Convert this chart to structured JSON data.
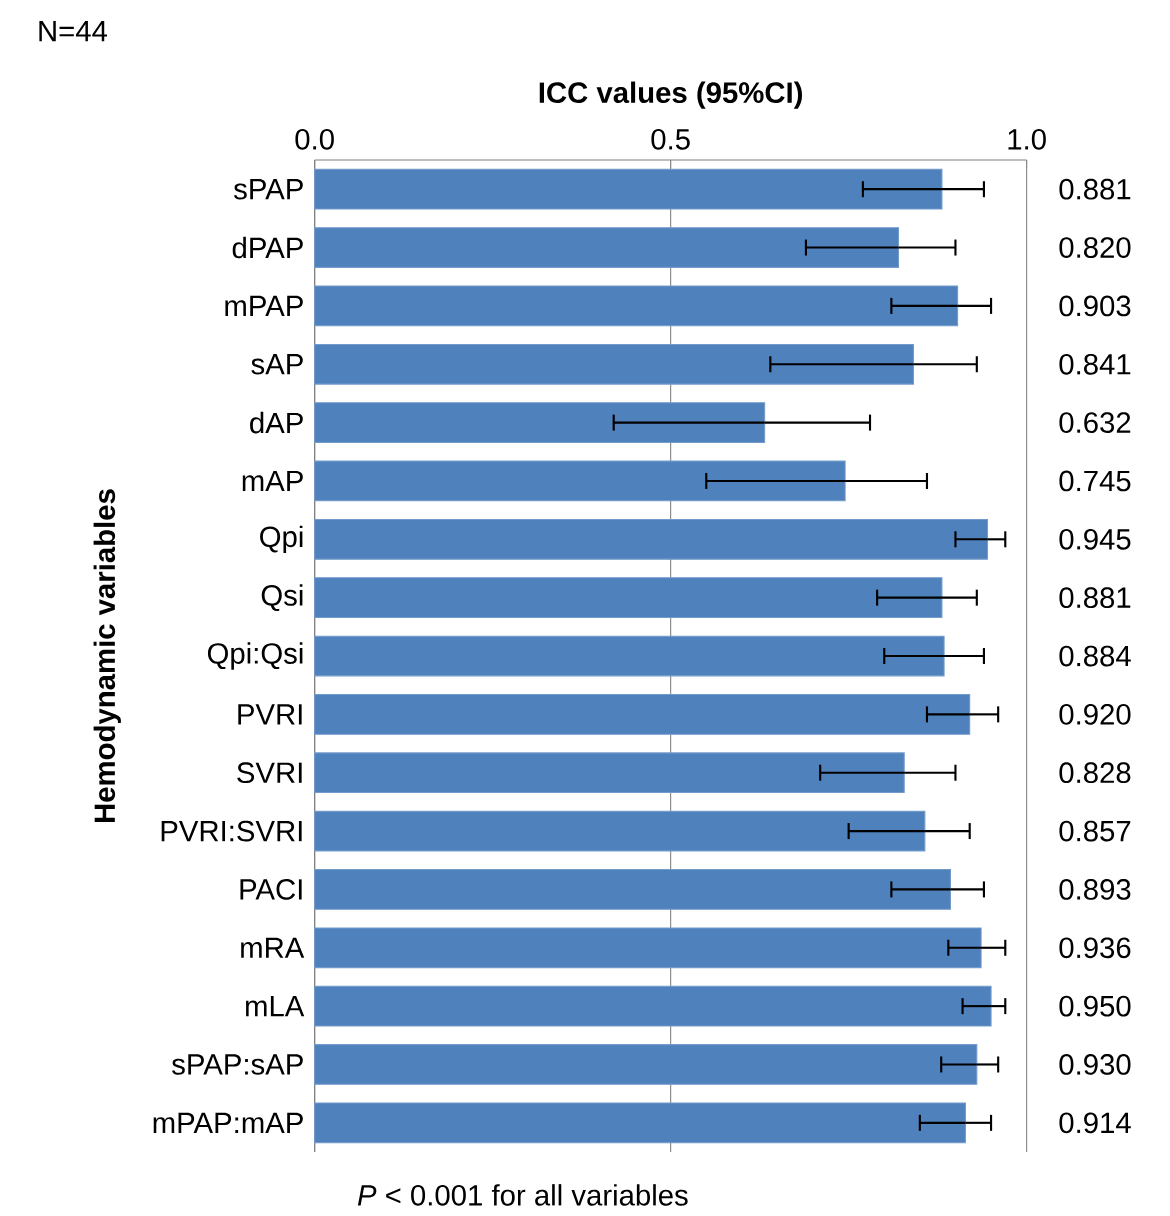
{
  "chart_data": {
    "type": "bar",
    "orientation": "horizontal",
    "xlabel": "ICC values (95%CI)",
    "ylabel": "Hemodynamic variables",
    "categories": [
      "sPAP",
      "dPAP",
      "mPAP",
      "sAP",
      "dAP",
      "mAP",
      "Qpi",
      "Qsi",
      "Qpi:Qsi",
      "PVRI",
      "SVRI",
      "PVRI:SVRI",
      "PACI",
      "mRA",
      "mLA",
      "sPAP:sAP",
      "mPAP:mAP"
    ],
    "values": [
      0.881,
      0.82,
      0.903,
      0.841,
      0.632,
      0.745,
      0.945,
      0.881,
      0.884,
      0.92,
      0.828,
      0.857,
      0.893,
      0.936,
      0.95,
      0.93,
      0.914
    ],
    "value_labels": [
      "0.881",
      "0.820",
      "0.903",
      "0.841",
      "0.632",
      "0.745",
      "0.945",
      "0.881",
      "0.884",
      "0.920",
      "0.828",
      "0.857",
      "0.893",
      "0.936",
      "0.950",
      "0.930",
      "0.914"
    ],
    "errors": [
      [
        0.77,
        0.94
      ],
      [
        0.69,
        0.9
      ],
      [
        0.81,
        0.95
      ],
      [
        0.64,
        0.93
      ],
      [
        0.42,
        0.78
      ],
      [
        0.55,
        0.86
      ],
      [
        0.9,
        0.97
      ],
      [
        0.79,
        0.93
      ],
      [
        0.8,
        0.94
      ],
      [
        0.86,
        0.96
      ],
      [
        0.71,
        0.9
      ],
      [
        0.75,
        0.92
      ],
      [
        0.81,
        0.94
      ],
      [
        0.89,
        0.97
      ],
      [
        0.91,
        0.97
      ],
      [
        0.88,
        0.96
      ],
      [
        0.85,
        0.95
      ]
    ],
    "color": "#4f81bd",
    "xlim": [
      0,
      1
    ],
    "xticks": [
      {
        "value": 0,
        "label": "0.0"
      },
      {
        "value": 0.5,
        "label": "0.5"
      },
      {
        "value": 1,
        "label": "1.0"
      }
    ],
    "grid": "x",
    "annotations": [
      "N=44",
      "*P* < 0.001 for all variables"
    ]
  }
}
